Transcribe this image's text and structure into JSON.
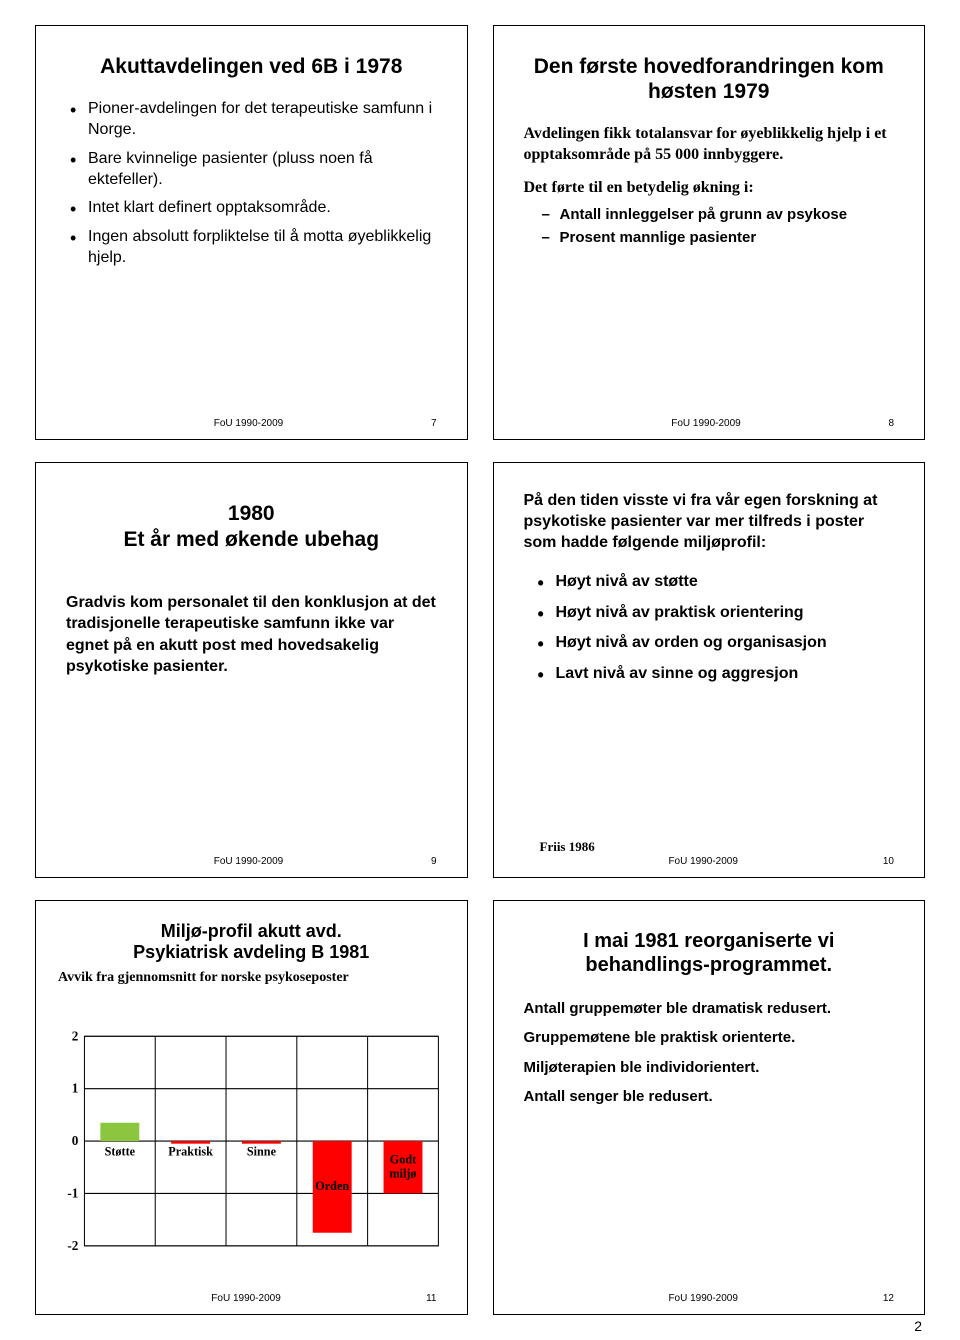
{
  "footer": {
    "source": "FoU 1990-2009"
  },
  "slides": {
    "s7": {
      "title": "Akuttavdelingen ved 6B i 1978",
      "bullets": [
        "Pioner-avdelingen for det terapeutiske samfunn i Norge.",
        "Bare kvinnelige pasienter (pluss noen få ektefeller).",
        "Intet klart definert opptaksområde.",
        "Ingen absolutt forpliktelse til å motta øyeblikkelig hjelp."
      ],
      "num": "7"
    },
    "s8": {
      "title": "Den første hovedforandringen kom høsten  1979",
      "p1": "Avdelingen fikk totalansvar for øyeblikkelig hjelp i et opptaksområde på 55 000 innbyggere.",
      "p2": "Det førte til en betydelig økning i:",
      "sub": [
        "Antall innleggelser på grunn av  psykose",
        "Prosent mannlige pasienter"
      ],
      "num": "8"
    },
    "s9": {
      "title": "1980\nEt år med økende ubehag",
      "body": "Gradvis kom personalet til den konklusjon at det tradisjonelle terapeutiske samfunn ikke var egnet på en akutt post med hovedsakelig psykotiske pasienter.",
      "num": "9"
    },
    "s10": {
      "intro": "På den tiden visste vi fra vår egen forskning at psykotiske pasienter var mer tilfreds i poster som hadde følgende miljøprofil:",
      "bullets": [
        "Høyt nivå av støtte",
        "Høyt nivå av praktisk orientering",
        "Høyt nivå av orden og organisasjon",
        "Lavt nivå av sinne og aggresjon"
      ],
      "ref": "Friis 1986",
      "num": "10"
    },
    "s11": {
      "title": "Miljø-profil akutt avd.\nPsykiatrisk avdeling B  1981",
      "subtitle": "Avvik fra gjennomsnitt for norske psykoseposter",
      "chart": {
        "type": "bar",
        "ylim": [
          -2,
          2
        ],
        "yticks": [
          -2,
          -1,
          0,
          1,
          2
        ],
        "categories": [
          "Støtte",
          "Praktisk",
          "Sinne",
          "Orden",
          "Godt miljø"
        ],
        "values": [
          0.35,
          -0.05,
          -0.05,
          -1.75,
          -1.0
        ],
        "colors": [
          "#8cc63f",
          "#ff0000",
          "#ff0000",
          "#ff0000",
          "#ff0000"
        ],
        "grid_color": "#000000",
        "background": "#ffffff"
      },
      "num": "11"
    },
    "s12": {
      "title": "I mai 1981 reorganiserte vi behandlings-programmet.",
      "items": [
        "Antall gruppemøter ble dramatisk redusert.",
        "Gruppemøtene ble praktisk orienterte.",
        "Miljøterapien ble individorientert.",
        "Antall senger ble redusert."
      ],
      "num": "12"
    }
  },
  "page_number": "2"
}
